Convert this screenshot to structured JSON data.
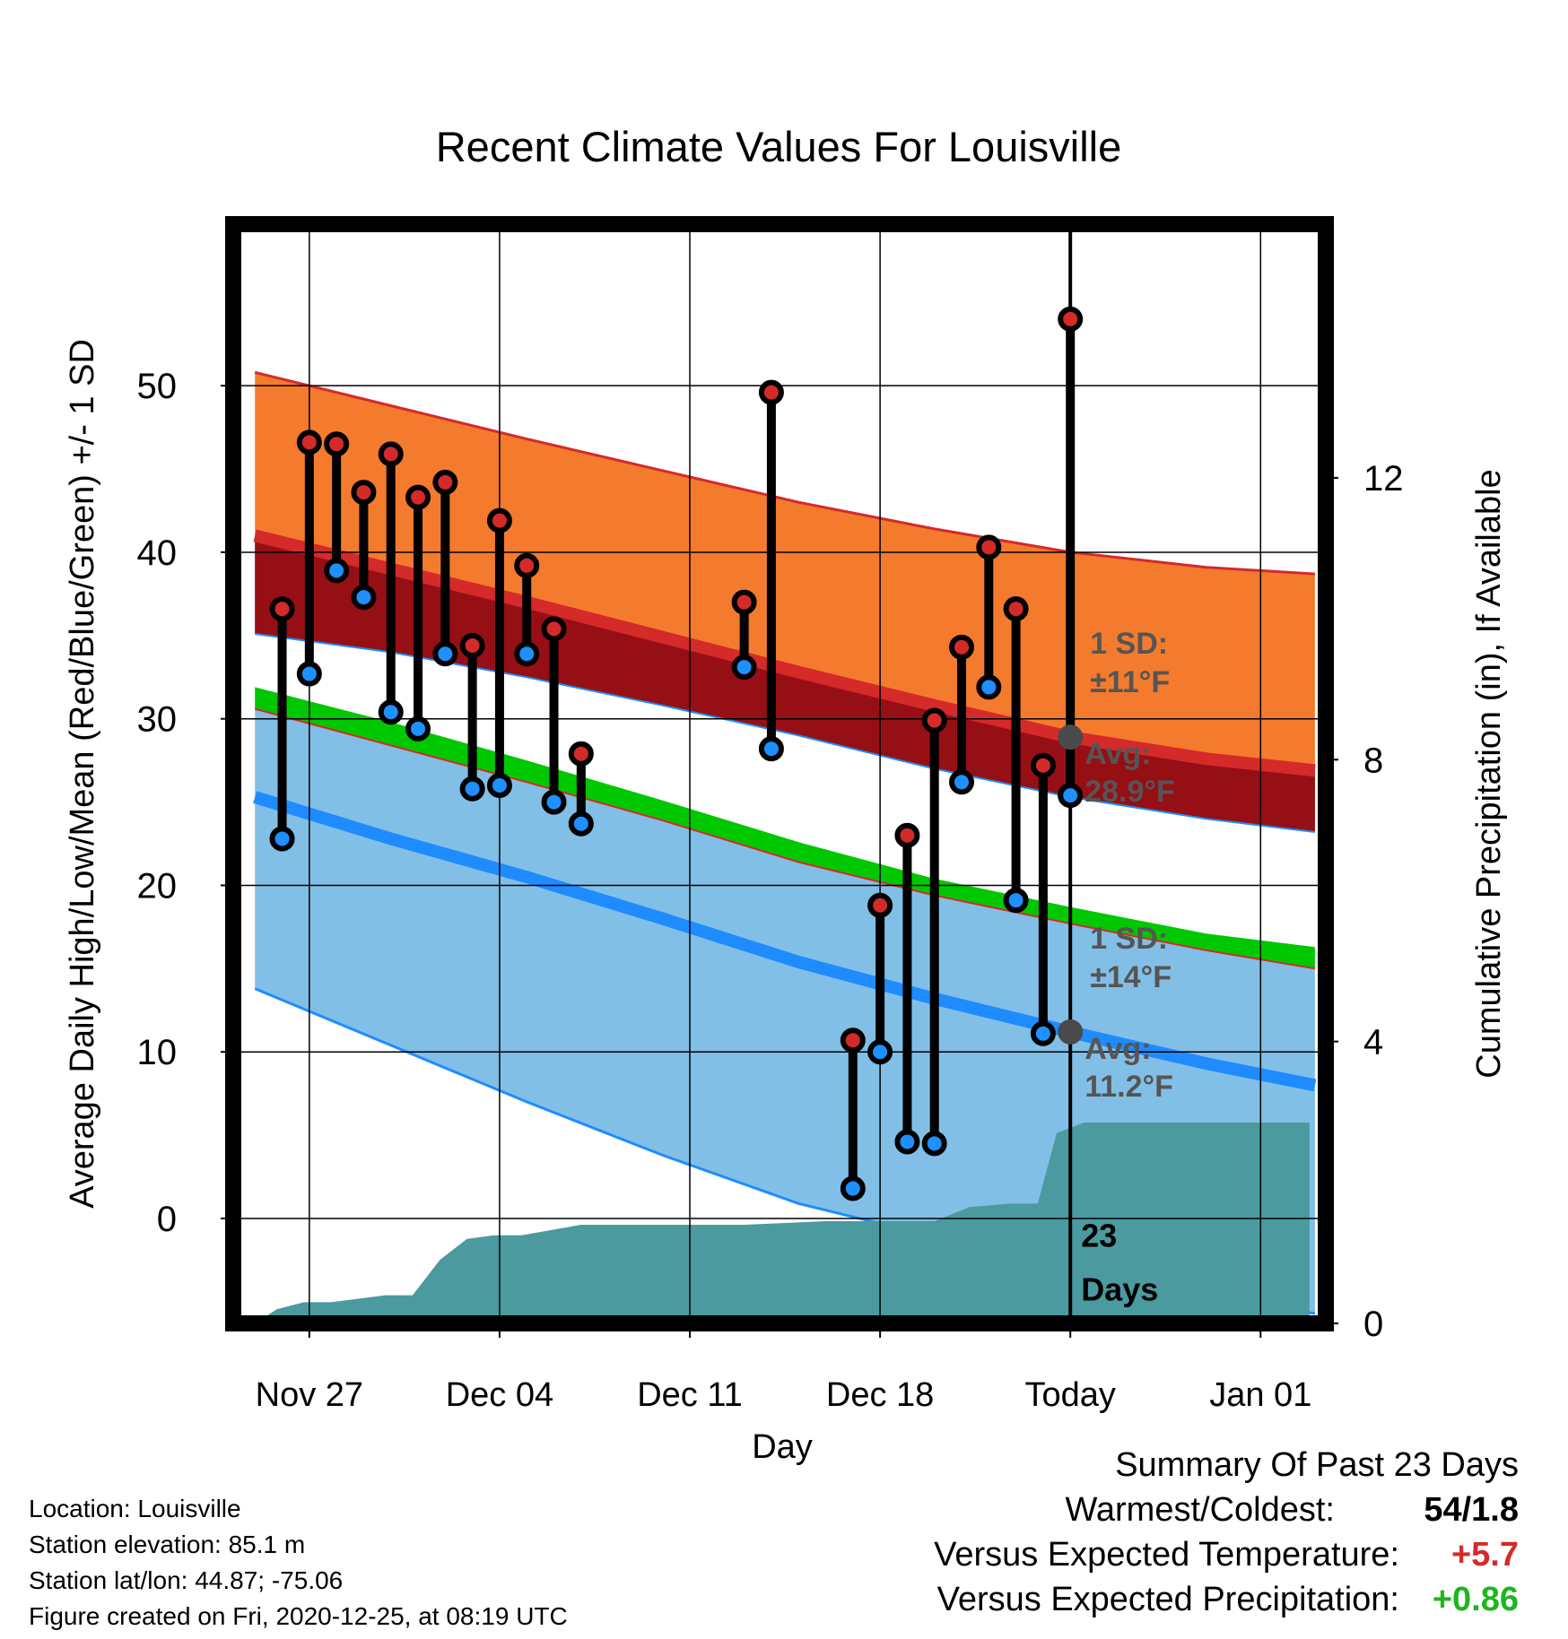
{
  "chart_data": {
    "type": "line",
    "title": "Recent Climate Values For Louisville",
    "xlabel": "Day",
    "ylabel": "Average Daily High/Low/Mean (Red/Blue/Green) +/- 1 SD",
    "y2label": "Cumulative Precipitation (in), If Available",
    "x_ticks": [
      {
        "day": 2,
        "label": "Nov 27"
      },
      {
        "day": 9,
        "label": "Dec 04"
      },
      {
        "day": 16,
        "label": "Dec 11"
      },
      {
        "day": 23,
        "label": "Dec 18"
      },
      {
        "day": 30,
        "label": "Today"
      },
      {
        "day": 37,
        "label": "Jan 01"
      }
    ],
    "xlim": [
      -0.8,
      39.4
    ],
    "ylim": [
      -6.3,
      59.7
    ],
    "y_ticks": [
      0,
      10,
      20,
      30,
      40,
      50
    ],
    "y2lim": [
      0,
      15.6
    ],
    "y2_ticks": [
      0,
      4,
      8,
      12
    ],
    "today_day": 30,
    "days_label": "23",
    "days_word": "Days",
    "normals": {
      "days": [
        0,
        5,
        10,
        15,
        20,
        25,
        30,
        35,
        39
      ],
      "high_upper": [
        50.8,
        48.8,
        46.8,
        44.9,
        43.0,
        41.4,
        40.0,
        39.1,
        38.7
      ],
      "high_mean": [
        41.0,
        39.0,
        37.0,
        34.9,
        32.8,
        30.8,
        28.9,
        27.6,
        26.9
      ],
      "high_lower": [
        35.1,
        34.0,
        32.5,
        30.8,
        29.0,
        27.0,
        25.3,
        24.0,
        23.2
      ],
      "mean_upper": [
        31.9,
        29.8,
        27.5,
        25.1,
        22.6,
        20.4,
        18.7,
        17.1,
        16.3
      ],
      "mean_lower": [
        30.6,
        28.4,
        26.2,
        23.9,
        21.4,
        19.4,
        17.7,
        16.1,
        15.0
      ],
      "low_mean": [
        25.3,
        22.8,
        20.5,
        18.0,
        15.4,
        13.2,
        11.2,
        9.3,
        8.0
      ],
      "low_lower": [
        13.8,
        10.4,
        7.0,
        3.8,
        0.9,
        -1.1,
        -3.2,
        -4.8,
        -5.7
      ]
    },
    "daily": [
      {
        "day": 1,
        "high": 36.6,
        "low": 22.8
      },
      {
        "day": 2,
        "high": 46.6,
        "low": 32.7
      },
      {
        "day": 3,
        "high": 46.5,
        "low": 38.9
      },
      {
        "day": 4,
        "high": 43.6,
        "low": 37.3
      },
      {
        "day": 5,
        "high": 45.9,
        "low": 30.4
      },
      {
        "day": 6,
        "high": 43.3,
        "low": 29.4
      },
      {
        "day": 7,
        "high": 44.2,
        "low": 33.9
      },
      {
        "day": 8,
        "high": 34.4,
        "low": 25.8
      },
      {
        "day": 9,
        "high": 41.9,
        "low": 26.0
      },
      {
        "day": 10,
        "high": 39.2,
        "low": 33.9
      },
      {
        "day": 11,
        "high": 35.4,
        "low": 25.0
      },
      {
        "day": 12,
        "high": 27.9,
        "low": 23.7
      },
      {
        "day": 18,
        "high": 37.0,
        "low": 33.1
      },
      {
        "day": 19,
        "high": 49.6,
        "low": 28.2
      },
      {
        "day": 22,
        "high": 10.7,
        "low": 1.8
      },
      {
        "day": 23,
        "high": 18.8,
        "low": 10.0
      },
      {
        "day": 24,
        "high": 23.0,
        "low": 4.6
      },
      {
        "day": 25,
        "high": 29.9,
        "low": 4.5
      },
      {
        "day": 26,
        "high": 34.3,
        "low": 26.2
      },
      {
        "day": 27,
        "high": 40.3,
        "low": 31.9
      },
      {
        "day": 28,
        "high": 36.6,
        "low": 19.1
      },
      {
        "day": 29,
        "high": 27.2,
        "low": 11.1
      },
      {
        "day": 30,
        "high": 54.0,
        "low": 25.4
      }
    ],
    "precip": {
      "days": [
        0,
        0.8,
        1.8,
        2.8,
        3.8,
        4.8,
        5.8,
        6.8,
        7.8,
        8.8,
        9.8,
        12,
        16,
        18,
        21,
        23,
        24,
        25,
        26.3,
        27.8,
        28.8,
        29.5,
        30.5,
        38.8
      ],
      "values": [
        0,
        0.2,
        0.3,
        0.3,
        0.35,
        0.4,
        0.4,
        0.9,
        1.2,
        1.25,
        1.25,
        1.4,
        1.4,
        1.4,
        1.45,
        1.45,
        1.45,
        1.45,
        1.65,
        1.7,
        1.7,
        2.7,
        2.85,
        2.85
      ]
    },
    "annotations": [
      {
        "sd_title": "1 SD:",
        "sd_value": "±11°F",
        "avg_title": "Avg:",
        "avg_value": "28.9°F",
        "avg": 28.9
      },
      {
        "sd_title": "1 SD:",
        "sd_value": "±14°F",
        "avg_title": "Avg:",
        "avg_value": "11.2°F",
        "avg": 11.2
      }
    ],
    "colors": {
      "high_band": "#F47B2D",
      "high_line": "#D42A2A",
      "high_inner": "#960F14",
      "mean_band": "#00C800",
      "low_band": "#82BFE6",
      "low_line": "#1E8CFF",
      "precip": "#4A9AA0",
      "high_dot": "#D42A2A",
      "low_dot": "#1E90FF",
      "avg_dot": "#4A4A4A",
      "annotation_text": "#555555"
    }
  },
  "location_info": [
    "Location: Louisville",
    "Station elevation: 85.1 m",
    "Station lat/lon: 44.87; -75.06",
    "Figure created on Fri, 2020-12-25, at 08:19 UTC"
  ],
  "summary": {
    "title": "Summary Of Past 23 Days",
    "rows": [
      {
        "label": "Warmest/Coldest:",
        "value": "54/1.8",
        "color": "#000000"
      },
      {
        "label": "Versus Expected Temperature:",
        "value": "+5.7",
        "color": "#D42A2A"
      },
      {
        "label": "Versus Expected Precipitation:",
        "value": "+0.86",
        "color": "#1FB51F"
      }
    ]
  }
}
